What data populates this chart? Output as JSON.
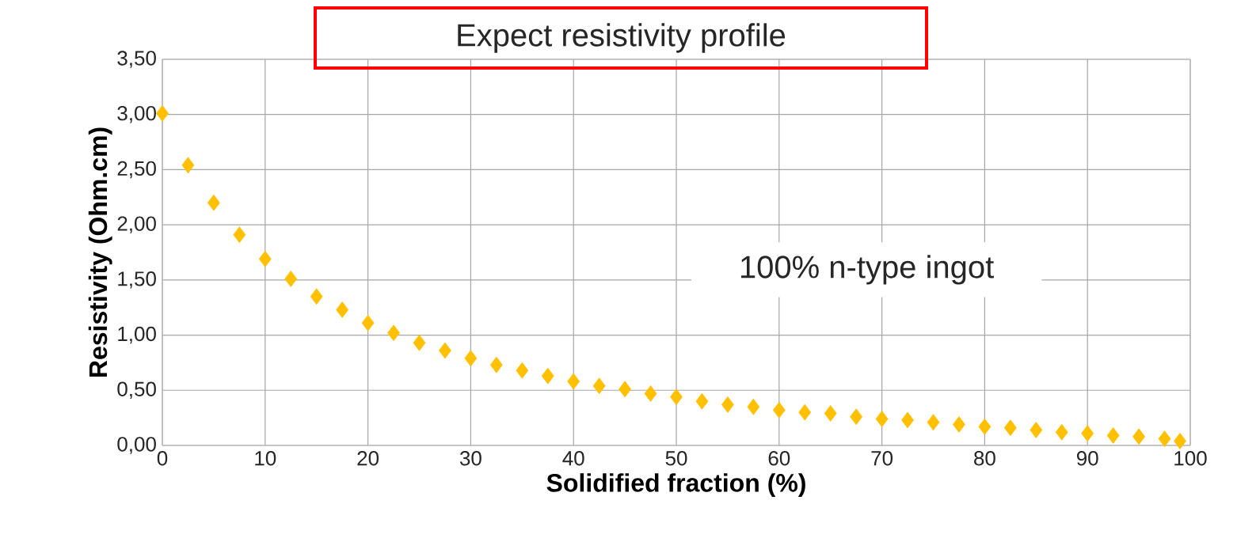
{
  "chart_data": {
    "type": "scatter",
    "title": "Expect resistivity profile",
    "xlabel": "Solidified fraction (%)",
    "ylabel": "Resistivity (Ohm.cm)",
    "annotations": [
      "100% n-type ingot"
    ],
    "x": [
      0,
      2.5,
      5,
      7.5,
      10,
      12.5,
      15,
      17.5,
      20,
      22.5,
      25,
      27.5,
      30,
      32.5,
      35,
      37.5,
      40,
      42.5,
      45,
      47.5,
      50,
      52.5,
      55,
      57.5,
      60,
      62.5,
      65,
      67.5,
      70,
      72.5,
      75,
      77.5,
      80,
      82.5,
      85,
      87.5,
      90,
      92.5,
      95,
      97.5,
      99
    ],
    "series": [
      {
        "color": "#ffc000",
        "values": [
          3.01,
          2.54,
          2.2,
          1.91,
          1.69,
          1.51,
          1.35,
          1.23,
          1.11,
          1.02,
          0.93,
          0.86,
          0.79,
          0.73,
          0.68,
          0.63,
          0.58,
          0.54,
          0.51,
          0.47,
          0.44,
          0.4,
          0.37,
          0.35,
          0.32,
          0.3,
          0.29,
          0.26,
          0.24,
          0.23,
          0.21,
          0.19,
          0.17,
          0.16,
          0.14,
          0.12,
          0.11,
          0.09,
          0.08,
          0.06,
          0.04
        ]
      }
    ],
    "xlim": [
      0,
      100
    ],
    "ylim": [
      0,
      3.5
    ],
    "xticks": [
      0,
      10,
      20,
      30,
      40,
      50,
      60,
      70,
      80,
      90,
      100
    ],
    "yticks": [
      {
        "value": 0,
        "label": "0,00"
      },
      {
        "value": 0.5,
        "label": "0,50"
      },
      {
        "value": 1,
        "label": "1,00"
      },
      {
        "value": 1.5,
        "label": "1,50"
      },
      {
        "value": 2,
        "label": "2,00"
      },
      {
        "value": 2.5,
        "label": "2,50"
      },
      {
        "value": 3,
        "label": "3,00"
      },
      {
        "value": 3.5,
        "label": "3,50"
      }
    ],
    "grid": true,
    "marker": "diamond"
  }
}
